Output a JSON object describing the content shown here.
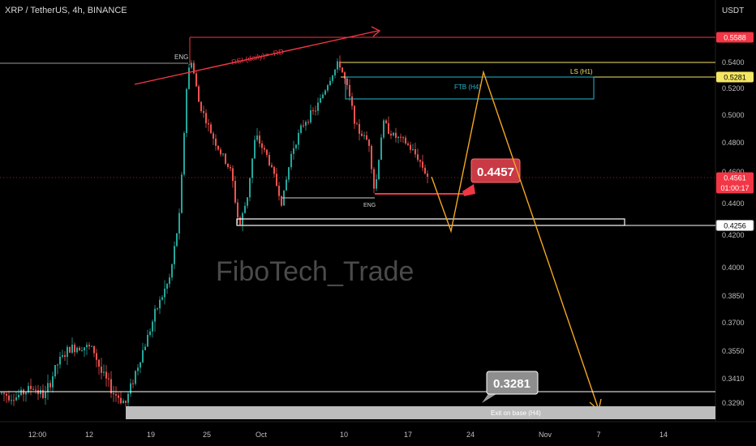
{
  "header": {
    "title": "XRP / TetherUS, 4h, BINANCE",
    "currency": "USDT"
  },
  "watermark": "FiboTech_Trade",
  "colors": {
    "up": "#26a69a",
    "down": "#ef5350",
    "red": "#f23645",
    "yellow": "#f5e663",
    "cyan": "#22bcd0",
    "orange": "#f5a623",
    "white": "#ffffff",
    "grey": "#c8c8c8"
  },
  "chart_data": {
    "type": "candlestick",
    "symbol": "XRP / TetherUS",
    "timeframe": "4h",
    "exchange": "BINANCE",
    "x_ticks": [
      "12:00",
      "12",
      "19",
      "25",
      "Oct",
      "10",
      "17",
      "24",
      "Nov",
      "7",
      "14"
    ],
    "y_ticks": [
      0.54,
      0.52,
      0.5,
      0.48,
      0.46,
      0.44,
      0.42,
      0.4,
      0.385,
      0.37,
      0.355,
      0.341,
      0.329
    ],
    "y_tick_labels": [
      "0.5400",
      "0.5200",
      "0.5000",
      "0.4800",
      "0.4600",
      "0.4400",
      "0.4200",
      "0.4000",
      "0.3850",
      "0.3700",
      "0.3550",
      "0.3410",
      "0.3290"
    ],
    "price_tags": [
      {
        "value": 0.5588,
        "label": "0.5588",
        "style": "red"
      },
      {
        "value": 0.5281,
        "label": "0.5281",
        "style": "yellow"
      },
      {
        "value": 0.4561,
        "label": "0.4561",
        "style": "red",
        "sub": "01:00:17"
      },
      {
        "value": 0.4256,
        "label": "0.4256",
        "style": "white"
      }
    ],
    "annotations": {
      "rsi_label": "RSI (daily)= -RD",
      "eng_top": "ENG",
      "eng_bottom": "ENG",
      "ls_label": "LS (H1)",
      "ftb_label": "FTB (H4)",
      "exit_label": "Exit on base (H4)",
      "callout_entry": "0.4457",
      "callout_target": "0.3281"
    },
    "key_levels": {
      "rsi_line_high": 0.5588,
      "ls": 0.5281,
      "ftb_top": 0.526,
      "ftb_bottom": 0.512,
      "entry": 0.4457,
      "support": 0.4256,
      "target": 0.3281,
      "current": 0.4561
    }
  }
}
